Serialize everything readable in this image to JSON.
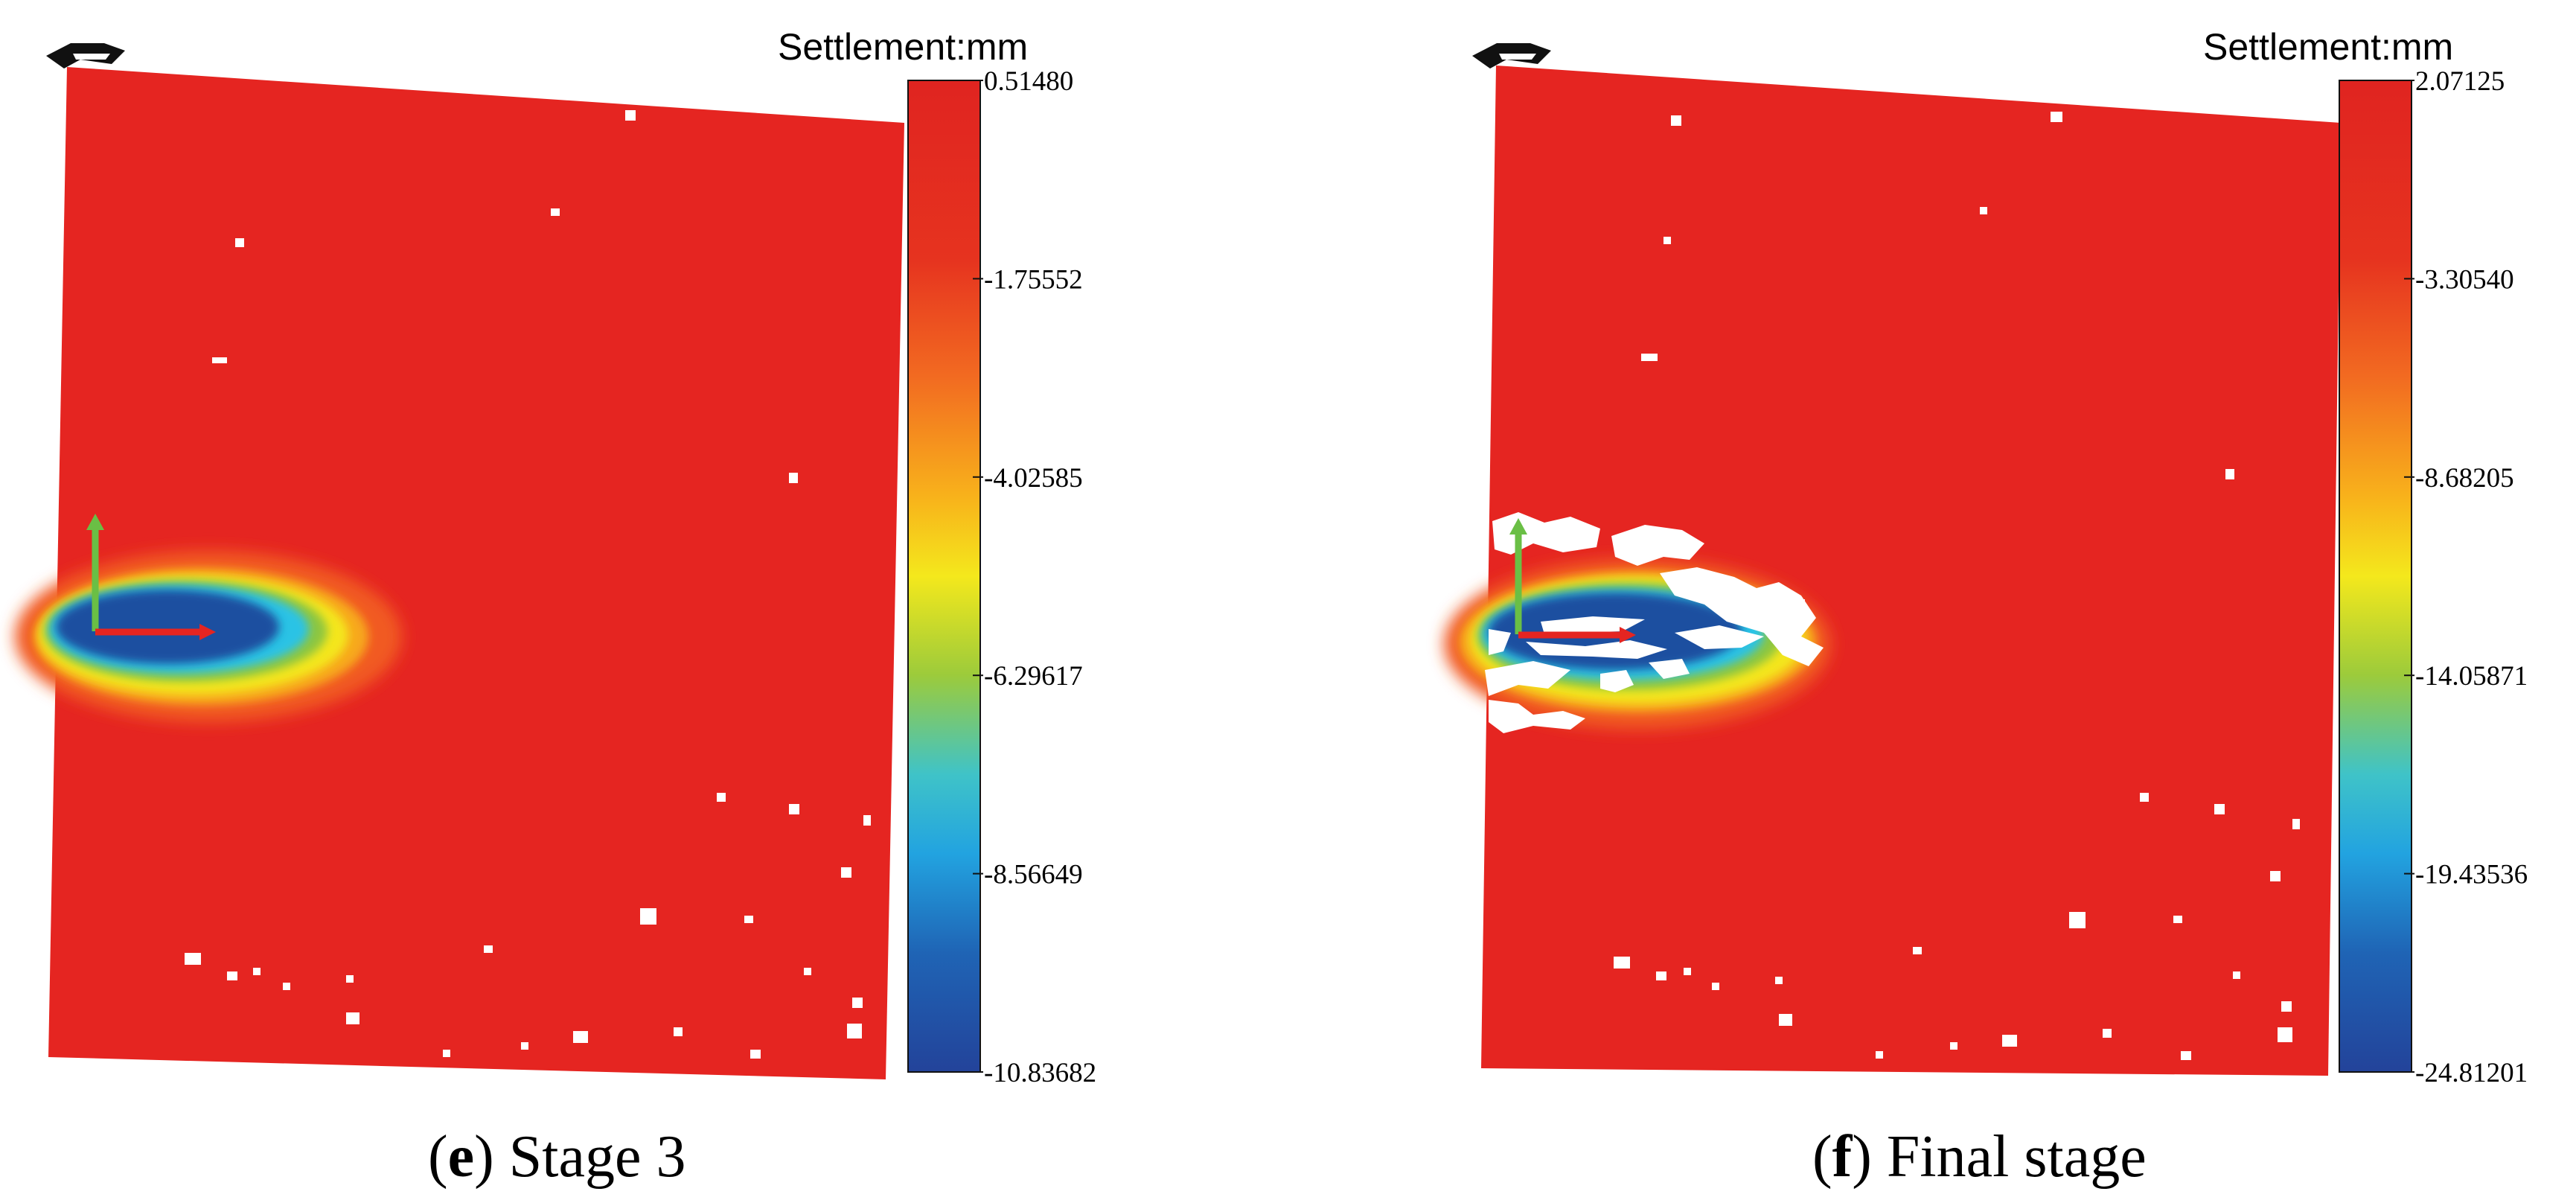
{
  "chart_data": [
    {
      "type": "heatmap",
      "panel_label": "e",
      "caption": "Stage 3",
      "legend_title": "Settlement:mm",
      "unit": "mm",
      "colorbar_ticks": [
        "0.51480",
        "-1.75552",
        "-4.02585",
        "-6.29617",
        "-8.56649",
        "-10.83682"
      ],
      "colorbar_range": [
        -10.83682,
        0.5148
      ],
      "colormap": [
        "#e52521",
        "#f15a22",
        "#f7931e",
        "#fff200",
        "#8dc63f",
        "#29c3e5",
        "#1b75bc",
        "#2e3192"
      ]
    },
    {
      "type": "heatmap",
      "panel_label": "f",
      "caption": "Final stage",
      "legend_title": "Settlement:mm",
      "unit": "mm",
      "colorbar_ticks": [
        "2.07125",
        "-3.30540",
        "-8.68205",
        "-14.05871",
        "-19.43536",
        "-24.81201"
      ],
      "colorbar_range": [
        -24.81201,
        2.07125
      ],
      "colormap": [
        "#e52521",
        "#f15a22",
        "#f7931e",
        "#fff200",
        "#8dc63f",
        "#29c3e5",
        "#1b75bc",
        "#2e3192"
      ]
    }
  ],
  "colors": {
    "field": "#e52521",
    "deep": "#1e4fa0",
    "mid": "#29c3e5",
    "yellow": "#f4e61c",
    "axis_x": "#e52521",
    "axis_y": "#6abf45"
  }
}
